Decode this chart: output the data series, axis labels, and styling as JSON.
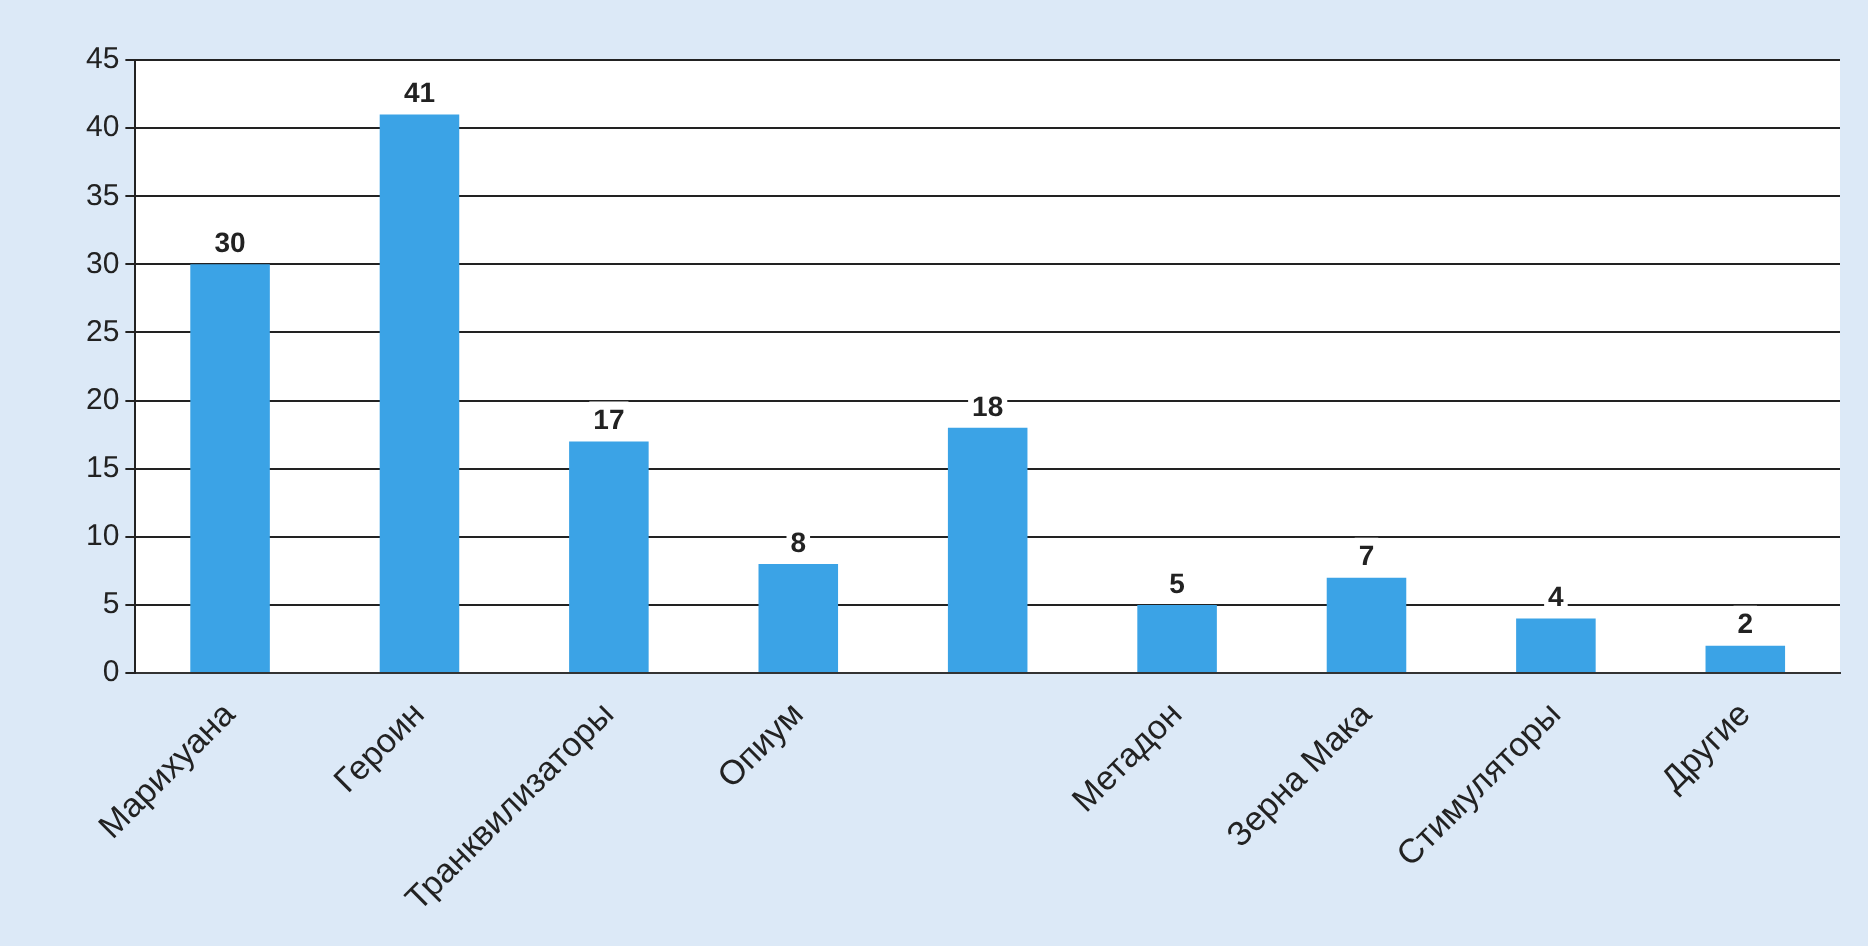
{
  "chart_data": {
    "type": "bar",
    "categories": [
      "Марихуана",
      "Героин",
      "Транквилизаторы",
      "Опиум",
      null,
      "Метадон",
      "Зерна Мака",
      "Стимуляторы",
      "Другие"
    ],
    "values": [
      30,
      41,
      17,
      8,
      18,
      5,
      7,
      4,
      2
    ],
    "color": "#3ba3e6",
    "ylim": [
      0,
      45
    ],
    "yticks": [
      0,
      5,
      10,
      15,
      20,
      25,
      30,
      35,
      40,
      45
    ],
    "grid": "y",
    "data_labels": true,
    "legend": false
  }
}
